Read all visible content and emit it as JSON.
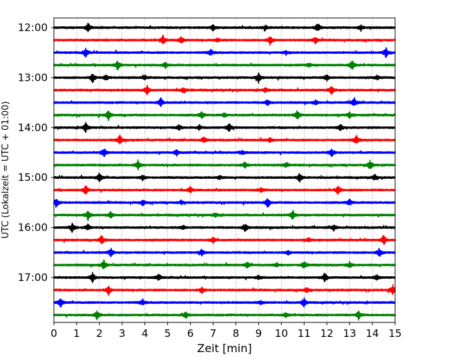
{
  "chart_data": {
    "type": "line",
    "title": "",
    "xlabel": "Zeit  [min]",
    "ylabel": "UTC (Lokalzeit = UTC + 01:00)",
    "xlim": [
      0,
      15
    ],
    "x_ticks": [
      "0",
      "1",
      "2",
      "3",
      "4",
      "5",
      "6",
      "7",
      "8",
      "9",
      "10",
      "11",
      "12",
      "13",
      "14",
      "15"
    ],
    "x_grid": "dotted vertical lines at each minute",
    "y_tick_labels": [
      "12:00",
      "13:00",
      "14:00",
      "15:00",
      "16:00",
      "17:00"
    ],
    "row_interval_minutes": 15,
    "row_colors": [
      "#000000",
      "#ff0000",
      "#0000ff",
      "#008000"
    ],
    "rows": [
      {
        "start": "12:00",
        "color": "#000000",
        "events_min": [
          1.5,
          7.0,
          9.3,
          11.6,
          13.5
        ]
      },
      {
        "start": "12:15",
        "color": "#ff0000",
        "events_min": [
          4.8,
          5.6,
          7.2,
          9.5,
          11.5
        ]
      },
      {
        "start": "12:30",
        "color": "#0000ff",
        "events_min": [
          1.4,
          6.9,
          10.2,
          14.6
        ]
      },
      {
        "start": "12:45",
        "color": "#008000",
        "events_min": [
          2.8,
          4.9,
          11.2,
          13.1
        ]
      },
      {
        "start": "13:00",
        "color": "#000000",
        "events_min": [
          1.7,
          2.3,
          4.0,
          9.0,
          12.0,
          14.2
        ]
      },
      {
        "start": "13:15",
        "color": "#ff0000",
        "events_min": [
          4.1,
          5.7,
          9.3,
          12.2
        ]
      },
      {
        "start": "13:30",
        "color": "#0000ff",
        "events_min": [
          4.7,
          9.4,
          11.5,
          13.2
        ]
      },
      {
        "start": "13:45",
        "color": "#008000",
        "events_min": [
          2.4,
          6.5,
          7.5,
          10.7,
          13.0
        ]
      },
      {
        "start": "14:00",
        "color": "#000000",
        "events_min": [
          1.4,
          5.5,
          6.4,
          7.7,
          12.6
        ]
      },
      {
        "start": "14:15",
        "color": "#ff0000",
        "events_min": [
          2.9,
          6.6,
          9.5,
          13.3
        ]
      },
      {
        "start": "14:30",
        "color": "#0000ff",
        "events_min": [
          2.2,
          5.4,
          8.3,
          12.2
        ]
      },
      {
        "start": "14:45",
        "color": "#008000",
        "events_min": [
          3.7,
          8.4,
          10.2,
          13.9
        ]
      },
      {
        "start": "15:00",
        "color": "#000000",
        "events_min": [
          2.0,
          3.9,
          7.3,
          10.8,
          14.1
        ]
      },
      {
        "start": "15:15",
        "color": "#ff0000",
        "events_min": [
          1.4,
          6.0,
          9.1,
          12.5
        ]
      },
      {
        "start": "15:30",
        "color": "#0000ff",
        "events_min": [
          0.1,
          3.9,
          5.6,
          9.4,
          13.0
        ]
      },
      {
        "start": "15:45",
        "color": "#008000",
        "events_min": [
          1.5,
          2.5,
          7.1,
          10.5
        ]
      },
      {
        "start": "16:00",
        "color": "#000000",
        "events_min": [
          0.8,
          1.5,
          5.7,
          8.4,
          12.3
        ]
      },
      {
        "start": "16:15",
        "color": "#ff0000",
        "events_min": [
          2.1,
          7.0,
          11.2,
          14.5
        ]
      },
      {
        "start": "16:30",
        "color": "#0000ff",
        "events_min": [
          2.5,
          6.5,
          10.3,
          14.3
        ]
      },
      {
        "start": "16:45",
        "color": "#008000",
        "events_min": [
          2.2,
          8.5,
          9.8,
          11.0,
          13.0
        ]
      },
      {
        "start": "17:00",
        "color": "#000000",
        "events_min": [
          1.7,
          4.6,
          9.0,
          11.9,
          14.2
        ]
      },
      {
        "start": "17:15",
        "color": "#ff0000",
        "events_min": [
          2.4,
          6.5,
          11.1,
          14.9
        ]
      },
      {
        "start": "17:30",
        "color": "#0000ff",
        "events_min": [
          0.3,
          3.9,
          9.1,
          11.0
        ]
      },
      {
        "start": "17:45",
        "color": "#008000",
        "events_min": [
          1.9,
          5.8,
          10.2,
          13.4
        ]
      }
    ]
  }
}
